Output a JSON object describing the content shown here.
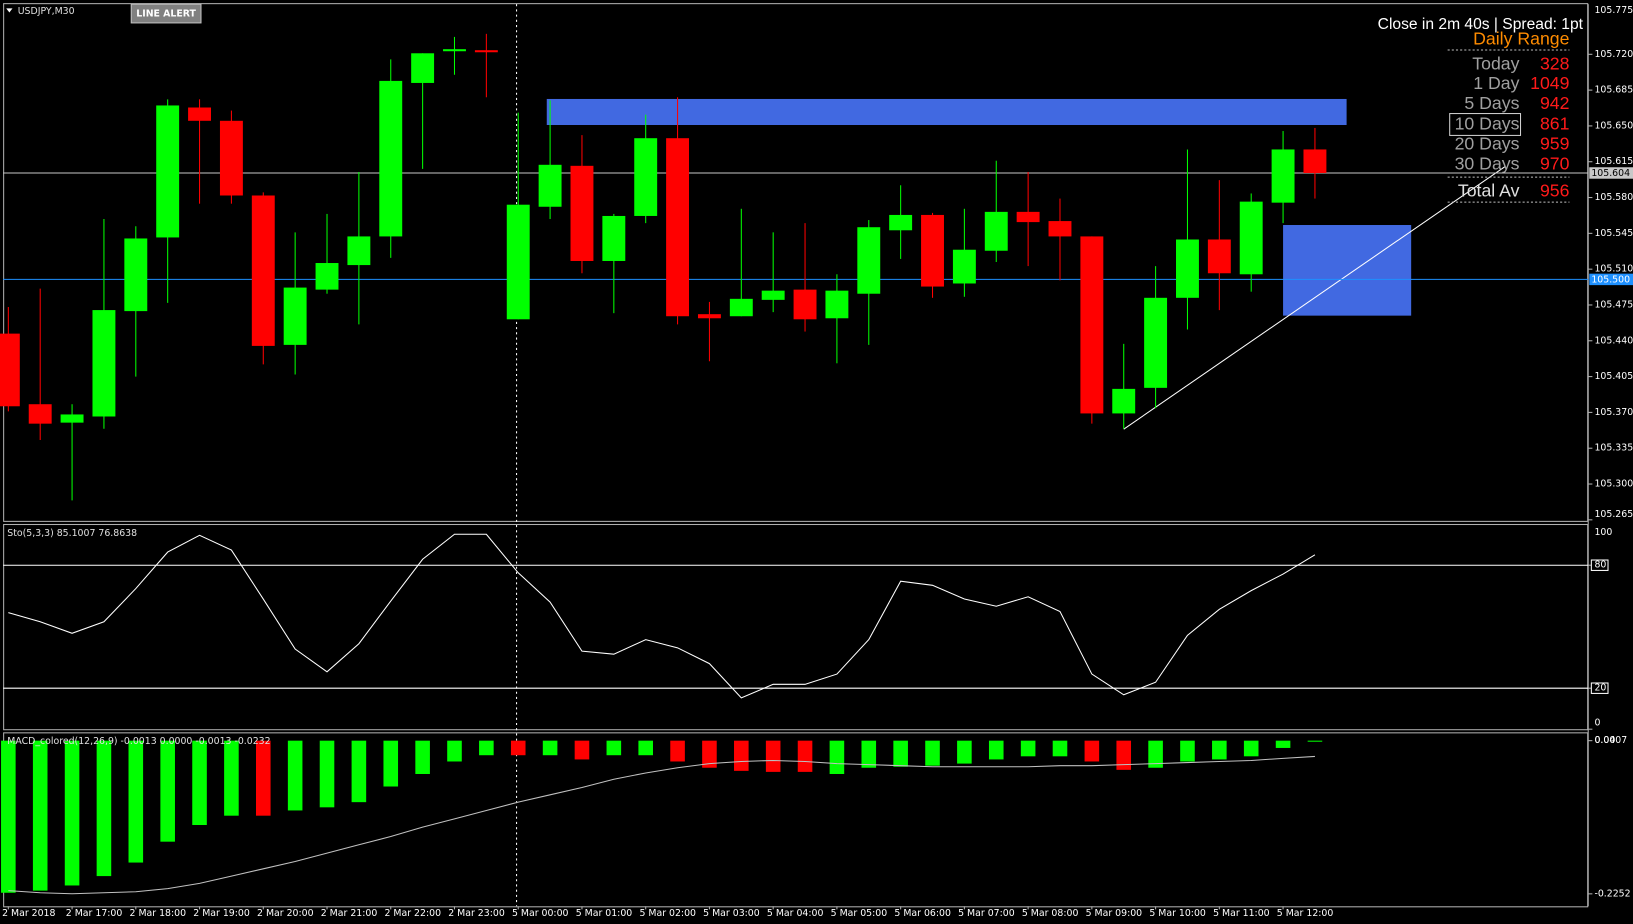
{
  "chart_data": [
    {
      "type": "candlestick",
      "title": "USDJPY,M30",
      "categories": [
        "2 Mar 2018",
        null,
        "2 Mar 17:00",
        null,
        "2 Mar 18:00",
        null,
        "2 Mar 19:00",
        null,
        "2 Mar 20:00",
        null,
        "2 Mar 21:00",
        null,
        "2 Mar 22:00",
        null,
        "2 Mar 23:00",
        null,
        "5 Mar 00:00",
        null,
        "5 Mar 01:00",
        null,
        "5 Mar 02:00",
        null,
        "5 Mar 03:00",
        null,
        "5 Mar 04:00",
        null,
        "5 Mar 05:00",
        null,
        "5 Mar 06:00",
        null,
        "5 Mar 07:00",
        null,
        "5 Mar 08:00",
        null,
        "5 Mar 09:00",
        null,
        "5 Mar 10:00",
        null,
        "5 Mar 11:00",
        null,
        "5 Mar 12:00",
        null
      ],
      "open": [
        105.447,
        105.378,
        105.36,
        105.366,
        105.469,
        105.541,
        105.668,
        105.655,
        105.582,
        105.436,
        105.49,
        105.514,
        105.542,
        105.692,
        105.723,
        105.724,
        105.461,
        105.571,
        105.611,
        105.518,
        105.562,
        105.638,
        105.466,
        105.464,
        105.48,
        105.49,
        105.462,
        105.486,
        105.548,
        105.563,
        105.496,
        105.528,
        105.566,
        105.557,
        105.542,
        105.369,
        105.394,
        105.482,
        105.539,
        105.505,
        105.575,
        105.627
      ],
      "high": [
        105.473,
        105.491,
        105.378,
        105.559,
        105.552,
        105.676,
        105.676,
        105.665,
        105.585,
        105.546,
        105.564,
        105.605,
        105.715,
        105.721,
        105.737,
        105.74,
        105.663,
        105.675,
        105.641,
        105.564,
        105.661,
        105.678,
        105.478,
        105.569,
        105.546,
        105.555,
        105.505,
        105.558,
        105.592,
        105.565,
        105.569,
        105.616,
        105.605,
        105.579,
        105.542,
        105.437,
        105.513,
        105.627,
        105.597,
        105.584,
        105.645,
        105.648
      ],
      "low": [
        105.371,
        105.343,
        105.284,
        105.354,
        105.405,
        105.477,
        105.574,
        105.574,
        105.417,
        105.407,
        105.486,
        105.456,
        105.521,
        105.608,
        105.7,
        105.678,
        105.461,
        105.559,
        105.506,
        105.467,
        105.555,
        105.456,
        105.42,
        105.464,
        105.468,
        105.449,
        105.418,
        105.436,
        105.52,
        105.482,
        105.483,
        105.517,
        105.513,
        105.499,
        105.359,
        105.354,
        105.374,
        105.451,
        105.47,
        105.488,
        105.555,
        105.579
      ],
      "close": [
        105.376,
        105.359,
        105.368,
        105.47,
        105.54,
        105.67,
        105.655,
        105.582,
        105.435,
        105.492,
        105.516,
        105.542,
        105.694,
        105.721,
        105.725,
        105.722,
        105.573,
        105.612,
        105.518,
        105.562,
        105.638,
        105.464,
        105.462,
        105.481,
        105.489,
        105.461,
        105.489,
        105.551,
        105.563,
        105.493,
        105.529,
        105.566,
        105.556,
        105.542,
        105.369,
        105.393,
        105.482,
        105.539,
        105.506,
        105.576,
        105.627,
        105.604
      ],
      "up_color": "#00ff00",
      "down_color": "#ff0000",
      "ylim": [
        105.264,
        105.769
      ],
      "yticks": [
        105.775,
        {
          "value": 105.72,
          "label": "105.720"
        },
        105.685,
        {
          "value": 105.65,
          "label": "105.650"
        },
        105.615,
        {
          "value": 105.58,
          "label": "105.580"
        },
        105.545,
        {
          "value": 105.51,
          "label": "105.510"
        },
        105.475,
        {
          "value": 105.44,
          "label": "105.440"
        },
        105.405,
        {
          "value": 105.37,
          "label": "105.370"
        },
        105.335,
        {
          "value": 105.3,
          "label": "105.300"
        },
        105.265
      ],
      "price_lines": [
        105.604,
        {
          "value": 105.5,
          "label": "105.500"
        }
      ],
      "price_line_colors": [
        "#c8c8c8",
        "#1e90ff"
      ]
    },
    {
      "type": "line",
      "title": "Sto(5,3,3) 85.1007 76.8638",
      "color": "#ffffff",
      "values": [
        56.9,
        52.4,
        46.8,
        52.4,
        68.6,
        86.4,
        94.6,
        87.4,
        63.5,
        39.1,
        28.0,
        41.7,
        62.5,
        82.9,
        95.1,
        95.1,
        76.3,
        62.0,
        38.1,
        36.6,
        43.7,
        39.7,
        32.0,
        15.3,
        21.9,
        21.9,
        26.9,
        43.7,
        72.2,
        70.2,
        63.5,
        60.0,
        64.6,
        57.4,
        26.9,
        16.8,
        22.9,
        45.8,
        58.5,
        67.6,
        75.7,
        85.1
      ],
      "ylim": [
        0,
        99.1
      ],
      "yticks": [
        100,
        80,
        20,
        0
      ]
    },
    {
      "type": "macd",
      "title": "MACD_colored(12,26,9) -0.0013 0.0000 -0.0013 -0.0232",
      "histogram": {
        "values": [
          -0.2236,
          -0.2205,
          -0.2129,
          -0.1991,
          -0.1792,
          -0.1485,
          -0.124,
          -0.1103,
          -0.1103,
          -0.1026,
          -0.098,
          -0.0904,
          -0.0674,
          -0.049,
          -0.0306,
          -0.0214,
          -0.0214,
          -0.0214,
          -0.0276,
          -0.0214,
          -0.0214,
          -0.0306,
          -0.0398,
          -0.0444,
          -0.0459,
          -0.0459,
          -0.049,
          -0.0398,
          -0.0383,
          -0.0368,
          -0.0337,
          -0.0276,
          -0.023,
          -0.023,
          -0.0306,
          -0.0429,
          -0.0398,
          -0.0306,
          -0.0276,
          -0.023,
          -0.0107,
          -0.0013
        ],
        "colors": [
          "#00ff00",
          "#00ff00",
          "#00ff00",
          "#00ff00",
          "#00ff00",
          "#00ff00",
          "#00ff00",
          "#00ff00",
          "#ff0000",
          "#00ff00",
          "#00ff00",
          "#00ff00",
          "#00ff00",
          "#00ff00",
          "#00ff00",
          "#00ff00",
          "#ff0000",
          "#00ff00",
          "#ff0000",
          "#00ff00",
          "#00ff00",
          "#ff0000",
          "#ff0000",
          "#ff0000",
          "#ff0000",
          "#ff0000",
          "#00ff00",
          "#00ff00",
          "#00ff00",
          "#00ff00",
          "#00ff00",
          "#00ff00",
          "#00ff00",
          "#00ff00",
          "#ff0000",
          "#ff0000",
          "#00ff00",
          "#00ff00",
          "#00ff00",
          "#00ff00",
          "#00ff00",
          "#00ff00"
        ]
      },
      "signal": {
        "color": "#c0c0c0",
        "values": [
          -0.2205,
          -0.2236,
          -0.2251,
          -0.2236,
          -0.2221,
          -0.2175,
          -0.2098,
          -0.1991,
          -0.1884,
          -0.1776,
          -0.1654,
          -0.1531,
          -0.1409,
          -0.1271,
          -0.1149,
          -0.1026,
          -0.0904,
          -0.0796,
          -0.0689,
          -0.0567,
          -0.0475,
          -0.0398,
          -0.0337,
          -0.0306,
          -0.0291,
          -0.0306,
          -0.0337,
          -0.0352,
          -0.0368,
          -0.0383,
          -0.0383,
          -0.0383,
          -0.0383,
          -0.0368,
          -0.0368,
          -0.0352,
          -0.0337,
          -0.0322,
          -0.0306,
          -0.0291,
          -0.026,
          -0.0232
        ]
      },
      "ylim": [
        -0.2435,
        0.0092
      ],
      "yticks": [
        0.0407,
        {
          "value": 0,
          "label": "0.00"
        },
        -0.2252
      ]
    }
  ],
  "button": "LINE ALERT",
  "info_panel": {
    "status": "Close in 2m 40s | Spread: 1pt",
    "title": "Daily Range",
    "rows": [
      {
        "label": "Today",
        "value": 328
      },
      {
        "label": "1 Day",
        "value": 1049
      },
      {
        "label": "5 Days",
        "value": 942
      },
      {
        "label": "10 Days",
        "value": 861
      },
      {
        "label": "20 Days",
        "value": 959
      },
      {
        "label": "30 Days",
        "value": 970
      }
    ],
    "total": {
      "label": "Total Av",
      "value": 956
    }
  }
}
